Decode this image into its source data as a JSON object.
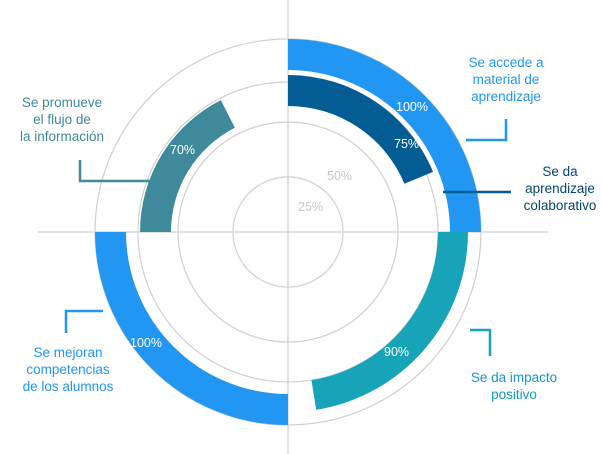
{
  "chart_data": {
    "type": "radial-bar",
    "guide_rings": [
      "25%",
      "50%"
    ],
    "series": [
      {
        "category": "Se accede a material de aprendizaje",
        "category_lines": [
          "Se accede a",
          "material de",
          "aprendizaje"
        ],
        "value": 100,
        "label": "100%",
        "color": "#2196f3",
        "text_color": "#2196f3"
      },
      {
        "category": "Se da aprendizaje colaborativo",
        "category_lines": [
          "Se da",
          "aprendizaje",
          "colaborativo"
        ],
        "value": 75,
        "label": "75%",
        "color": "#035d94",
        "text_color": "#04466e"
      },
      {
        "category": "Se da impacto positivo",
        "category_lines": [
          "Se da impacto",
          "positivo"
        ],
        "value": 90,
        "label": "90%",
        "color": "#17a3b8",
        "text_color": "#1598c3"
      },
      {
        "category": "Se mejoran competencias de los alumnos",
        "category_lines": [
          "Se mejoran",
          "competencias",
          "de los alumnos"
        ],
        "value": 100,
        "label": "100%",
        "color": "#2196f3",
        "text_color": "#2196f3"
      },
      {
        "category": "Se promueve el flujo de la información",
        "category_lines": [
          "Se promueve",
          "el flujo de",
          "la información"
        ],
        "value": 70,
        "label": "70%",
        "color": "#3e8a9b",
        "text_color": "#3e8a9b"
      }
    ]
  }
}
